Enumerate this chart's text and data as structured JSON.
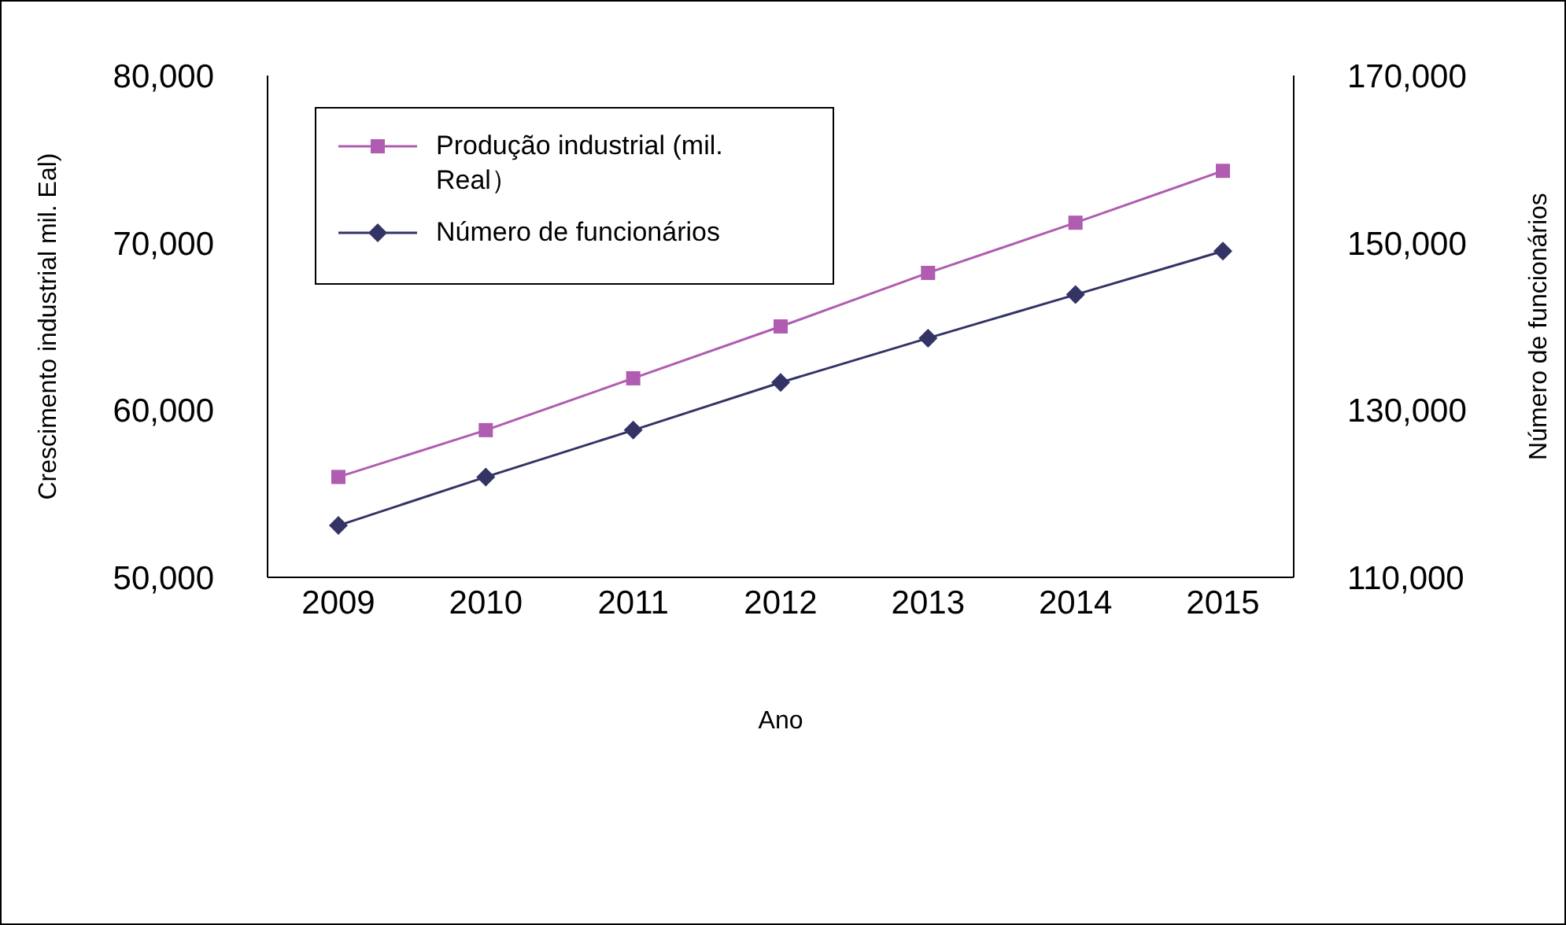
{
  "chart_data": {
    "type": "line",
    "xlabel": "Ano",
    "ylabel": "Crescimento industrial mil. Eal)",
    "y2label": "Número de funcionários",
    "categories": [
      "2009",
      "2010",
      "2011",
      "2012",
      "2013",
      "2014",
      "2015"
    ],
    "series": [
      {
        "name": "Produção industrial (mil. Real）",
        "color": "#b05cb0",
        "marker": "square",
        "values": [
          56000,
          58800,
          61900,
          65000,
          68200,
          71200,
          74300
        ]
      },
      {
        "name": "Número de funcionários",
        "color": "#333366",
        "marker": "diamond",
        "axis": "y2",
        "values": [
          116200,
          122000,
          127600,
          133300,
          138600,
          143800,
          149000
        ]
      }
    ],
    "ylim": [
      50000,
      80000
    ],
    "yticks": [
      {
        "value": 50000,
        "label": "50,000"
      },
      {
        "value": 60000,
        "label": "60,000"
      },
      {
        "value": 70000,
        "label": "70,000"
      },
      {
        "value": 80000,
        "label": "80,000"
      }
    ],
    "y2lim": [
      110000,
      170000
    ],
    "y2ticks": [
      {
        "value": 110000,
        "label": "110,000"
      },
      {
        "value": 130000,
        "label": "130,000"
      },
      {
        "value": 150000,
        "label": "150,000"
      },
      {
        "value": 170000,
        "label": "170,000"
      }
    ],
    "legend": "top left",
    "grid": false
  }
}
